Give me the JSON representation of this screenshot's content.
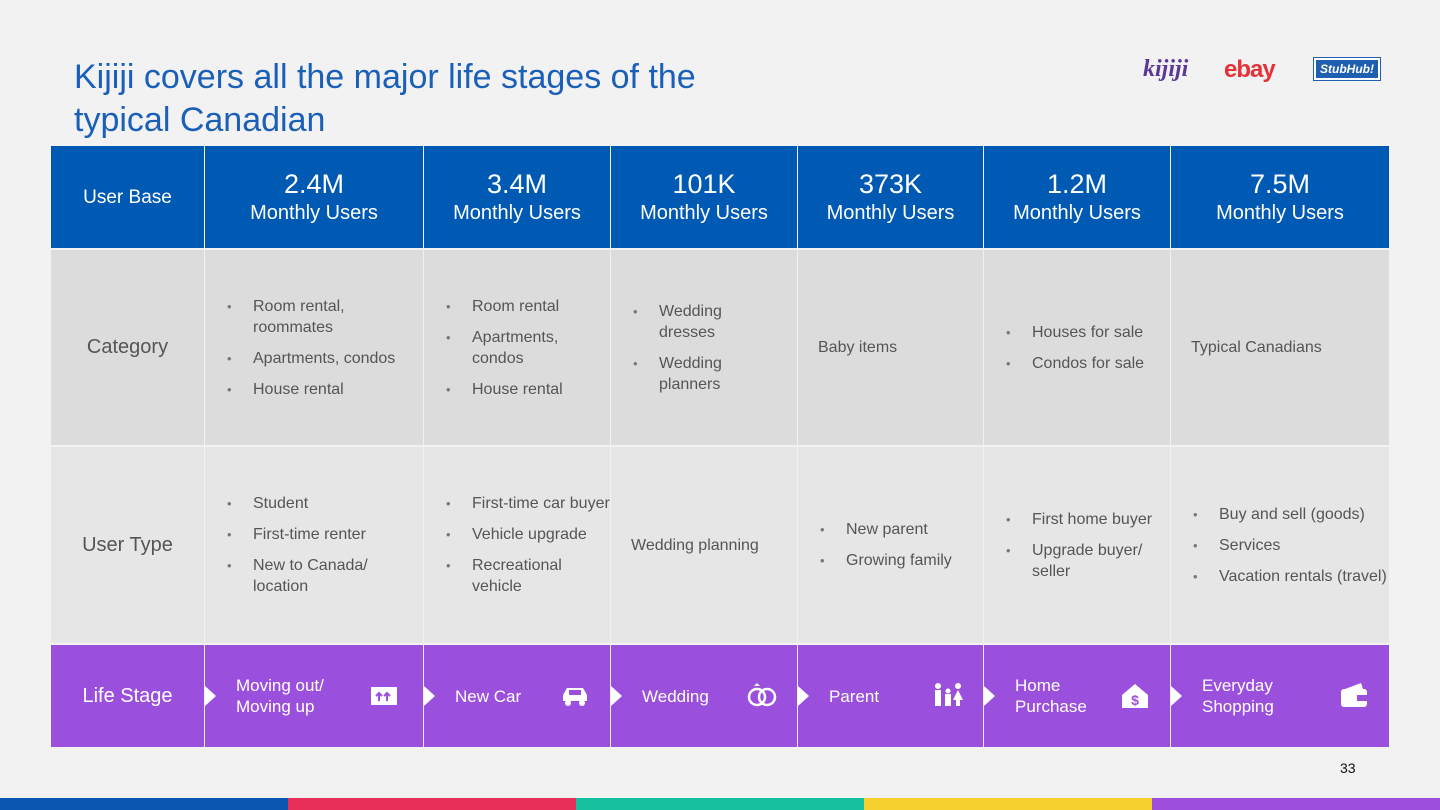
{
  "title": "Kijiji covers all the major life stages of the typical Canadian",
  "logos": [
    "kijiji",
    "ebay",
    "StubHub!"
  ],
  "table": {
    "header": {
      "label": "User Base",
      "columns": [
        {
          "value": "2.4M",
          "unit": "Monthly Users"
        },
        {
          "value": "3.4M",
          "unit": "Monthly Users"
        },
        {
          "value": "101K",
          "unit": "Monthly Users"
        },
        {
          "value": "373K",
          "unit": "Monthly Users"
        },
        {
          "value": "1.2M",
          "unit": "Monthly Users"
        },
        {
          "value": "7.5M",
          "unit": "Monthly Users"
        }
      ]
    },
    "rows": [
      {
        "label": "Category",
        "cells": [
          [
            "Room rental, roommates",
            "Apartments, condos",
            "House rental"
          ],
          [
            "Room rental",
            "Apartments, condos",
            "House rental"
          ],
          [
            "Wedding dresses",
            "Wedding planners"
          ],
          "Baby items",
          [
            "Houses for sale",
            "Condos for sale"
          ],
          "Typical Canadians"
        ]
      },
      {
        "label": "User Type",
        "cells": [
          [
            "Student",
            "First-time renter",
            "New to Canada/ location"
          ],
          [
            "First-time car buyer",
            "Vehicle upgrade",
            "Recreational vehicle"
          ],
          "Wedding planning",
          [
            "New parent",
            "Growing family"
          ],
          [
            "First home buyer",
            "Upgrade buyer/ seller"
          ],
          [
            "Buy and sell (goods)",
            "Services",
            "Vacation rentals (travel)"
          ]
        ]
      }
    ],
    "life_stage": {
      "label": "Life Stage",
      "cells": [
        "Moving out/ Moving up",
        "New Car",
        "Wedding",
        "Parent",
        "Home Purchase",
        "Everyday Shopping"
      ]
    }
  },
  "page_number": "33"
}
